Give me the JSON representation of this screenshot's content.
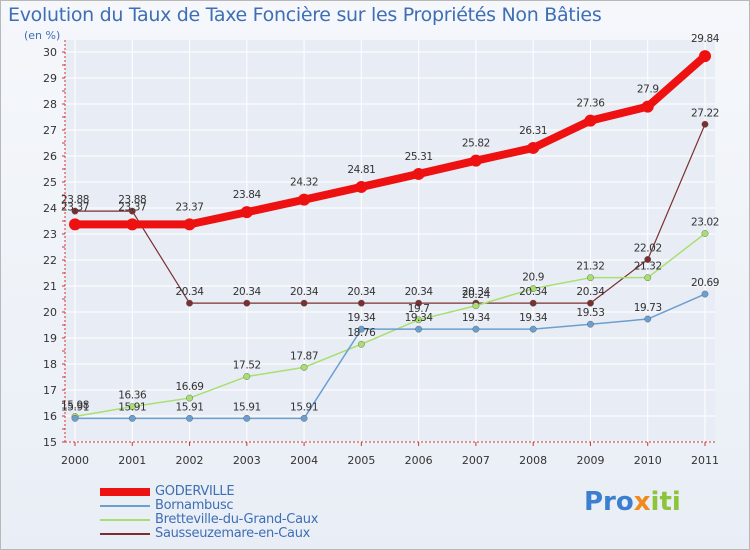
{
  "header": {
    "title": "Evolution du Taux de Taxe Foncière sur les Propriétés Non Bâties",
    "unit": "(en %)"
  },
  "logo": {
    "parts": [
      "Pro",
      "x",
      "iti"
    ]
  },
  "colors": {
    "GODERVILLE": "#ee1111",
    "Bornambusc": "#6b9fd0",
    "Bretteville": "#a8df70",
    "Sausseuzemare": "#7a3030",
    "axis": "#d33333",
    "grid": "#ffffff",
    "text": "#333333"
  },
  "legend": {
    "items": [
      "GODERVILLE",
      "Bornambusc",
      "Bretteville-du-Grand-Caux",
      "Sausseuzemare-en-Caux"
    ]
  },
  "chart_data": {
    "type": "line",
    "title": "Evolution du Taux de Taxe Foncière sur les Propriétés Non Bâties",
    "ylabel": "(en %)",
    "xlabel": "",
    "ylim": [
      15,
      30
    ],
    "yticks": [
      15,
      16,
      17,
      18,
      19,
      20,
      21,
      22,
      23,
      24,
      25,
      26,
      27,
      28,
      29,
      30
    ],
    "categories": [
      "2000",
      "2001",
      "2002",
      "2003",
      "2004",
      "2005",
      "2006",
      "2007",
      "2008",
      "2009",
      "2010",
      "2011"
    ],
    "legend_position": "bottom-left",
    "series": [
      {
        "name": "GODERVILLE",
        "values": [
          23.37,
          23.37,
          23.37,
          23.84,
          24.32,
          24.81,
          25.31,
          25.82,
          26.31,
          27.36,
          27.9,
          29.84
        ],
        "labels": [
          "23.37",
          "23.37",
          "23.37",
          "23.84",
          "24.32",
          "24.81",
          "25.31",
          "25.82",
          "26.31",
          "27.36",
          "27.9",
          "29.84"
        ]
      },
      {
        "name": "Bornambusc",
        "values": [
          15.91,
          15.91,
          15.91,
          15.91,
          15.91,
          19.34,
          19.34,
          19.34,
          19.34,
          19.53,
          19.73,
          20.69
        ],
        "labels": [
          "15.91",
          "15.91",
          "15.91",
          "15.91",
          "15.91",
          "19.34",
          "19.34",
          "19.34",
          "19.34",
          "19.53",
          "19.73",
          "20.69"
        ]
      },
      {
        "name": "Bretteville-du-Grand-Caux",
        "values": [
          15.98,
          16.36,
          16.69,
          17.52,
          17.87,
          18.76,
          19.7,
          20.24,
          20.9,
          21.32,
          21.32,
          23.02
        ],
        "labels": [
          "15.98",
          "16.36",
          "16.69",
          "17.52",
          "17.87",
          "18.76",
          "19.7",
          "20.24",
          "20.9",
          "21.32",
          "21.32",
          "23.02"
        ]
      },
      {
        "name": "Sausseuzemare-en-Caux",
        "values": [
          23.88,
          23.88,
          20.34,
          20.34,
          20.34,
          20.34,
          20.34,
          20.34,
          20.34,
          20.34,
          22.02,
          27.22
        ],
        "labels": [
          "23.88",
          "23.88",
          "20.34",
          "20.34",
          "20.34",
          "20.34",
          "20.34",
          "20.34",
          "20.34",
          "20.34",
          "22.02",
          "27.22"
        ]
      }
    ]
  }
}
